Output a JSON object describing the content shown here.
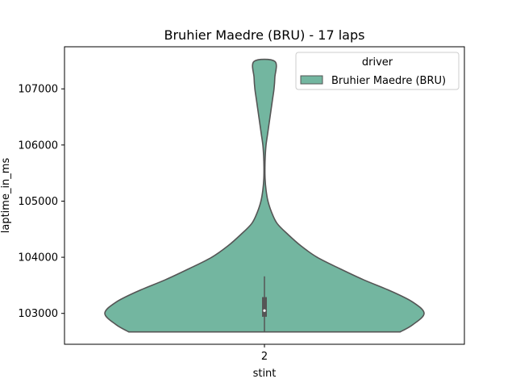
{
  "chart_data": {
    "type": "violin",
    "title": "Bruhier Maedre (BRU) - 17 laps",
    "xlabel": "stint",
    "ylabel": "laptime_in_ms",
    "categories": [
      "2"
    ],
    "ylim": [
      102450,
      107750
    ],
    "yticks": [
      103000,
      104000,
      105000,
      106000,
      107000
    ],
    "yticklabels": [
      "103000",
      "104000",
      "105000",
      "106000",
      "107000"
    ],
    "series": [
      {
        "name": "Bruhier Maedre (BRU)",
        "category": "2",
        "color": "#73b6a0",
        "edge_color": "#555555",
        "min": 102670,
        "max": 107490,
        "q1": 102940,
        "median": 103050,
        "q3": 103290,
        "whisker_low": 102670,
        "whisker_high": 103660,
        "density_profile": [
          [
            102670,
            0.85
          ],
          [
            102800,
            0.93
          ],
          [
            103000,
            1.0
          ],
          [
            103200,
            0.93
          ],
          [
            103400,
            0.79
          ],
          [
            103600,
            0.62
          ],
          [
            103800,
            0.47
          ],
          [
            104000,
            0.33
          ],
          [
            104200,
            0.23
          ],
          [
            104400,
            0.15
          ],
          [
            104600,
            0.08
          ],
          [
            104800,
            0.045
          ],
          [
            105000,
            0.022
          ],
          [
            105200,
            0.01
          ],
          [
            105400,
            0.004
          ],
          [
            105600,
            0.003
          ],
          [
            105800,
            0.005
          ],
          [
            106000,
            0.01
          ],
          [
            106200,
            0.02
          ],
          [
            106500,
            0.035
          ],
          [
            106800,
            0.05
          ],
          [
            107000,
            0.06
          ],
          [
            107200,
            0.065
          ],
          [
            107490,
            0.065
          ]
        ]
      }
    ],
    "legend": {
      "title": "driver",
      "placement": "upper-right",
      "entries": [
        "Bruhier Maedre (BRU)"
      ]
    },
    "grid": false
  }
}
